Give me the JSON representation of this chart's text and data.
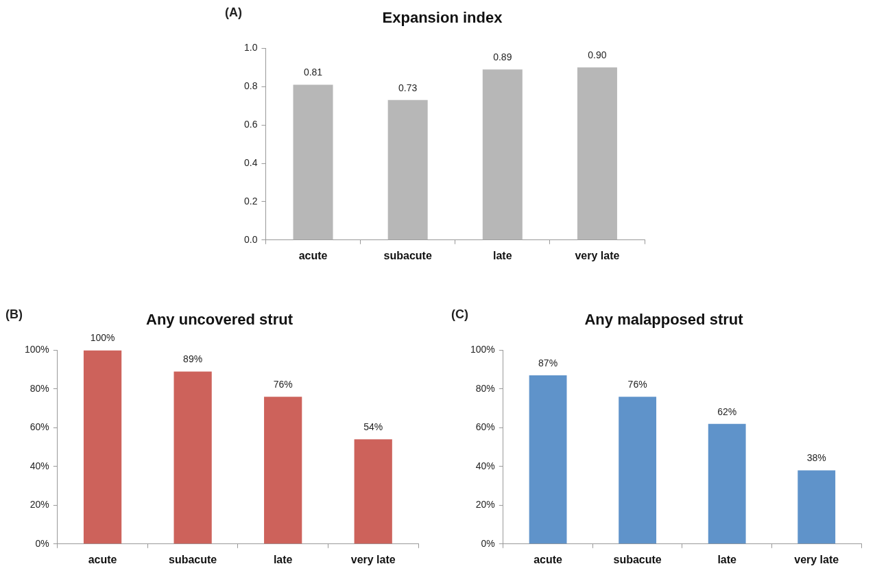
{
  "chart_data": [
    {
      "type": "bar",
      "title": "Expansion index",
      "annotations": [
        "(A)"
      ],
      "categories": [
        "acute",
        "subacute",
        "late",
        "very late"
      ],
      "series": [
        {
          "color": "#b7b7b7",
          "values": [
            0.81,
            0.73,
            0.89,
            0.9
          ],
          "value_labels": [
            "0.81",
            "0.73",
            "0.89",
            "0.90"
          ]
        }
      ],
      "ylim": [
        0,
        1
      ],
      "yticks": [
        {
          "value": 0,
          "label": "0.0"
        },
        {
          "value": 0.2,
          "label": "0.2"
        },
        {
          "value": 0.4,
          "label": "0.4"
        },
        {
          "value": 0.6,
          "label": "0.6"
        },
        {
          "value": 0.8,
          "label": "0.8"
        },
        {
          "value": 1,
          "label": "1.0"
        }
      ],
      "grid": false,
      "legend": false
    },
    {
      "type": "bar",
      "title": "Any uncovered strut",
      "annotations": [
        "(B)"
      ],
      "categories": [
        "acute",
        "subacute",
        "late",
        "very late"
      ],
      "series": [
        {
          "color": "#cd625b",
          "values": [
            100,
            89,
            76,
            54
          ],
          "value_labels": [
            "100%",
            "89%",
            "76%",
            "54%"
          ]
        }
      ],
      "ylim": [
        0,
        100
      ],
      "yticks": [
        {
          "value": 0,
          "label": "0%"
        },
        {
          "value": 20,
          "label": "20%"
        },
        {
          "value": 40,
          "label": "40%"
        },
        {
          "value": 60,
          "label": "60%"
        },
        {
          "value": 80,
          "label": "80%"
        },
        {
          "value": 100,
          "label": "100%"
        }
      ],
      "grid": false,
      "legend": false
    },
    {
      "type": "bar",
      "title": "Any malapposed strut",
      "annotations": [
        "(C)"
      ],
      "categories": [
        "acute",
        "subacute",
        "late",
        "very late"
      ],
      "series": [
        {
          "color": "#5f93ca",
          "values": [
            87,
            76,
            62,
            38
          ],
          "value_labels": [
            "87%",
            "76%",
            "62%",
            "38%"
          ]
        }
      ],
      "ylim": [
        0,
        100
      ],
      "yticks": [
        {
          "value": 0,
          "label": "0%"
        },
        {
          "value": 20,
          "label": "20%"
        },
        {
          "value": 40,
          "label": "40%"
        },
        {
          "value": 60,
          "label": "60%"
        },
        {
          "value": 80,
          "label": "80%"
        },
        {
          "value": 100,
          "label": "100%"
        }
      ],
      "grid": false,
      "legend": false
    }
  ]
}
